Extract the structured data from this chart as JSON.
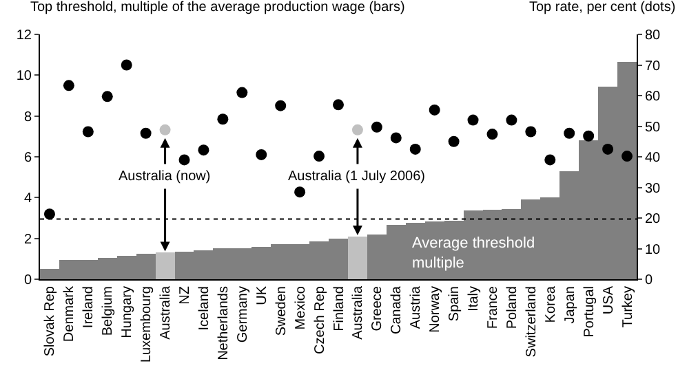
{
  "chart_data": {
    "type": "bar",
    "ylabel": "Top threshold, multiple of the average production wage (bars)",
    "y2label": "Top rate, per cent (dots)",
    "categories": [
      "Slovak Rep",
      "Denmark",
      "Ireland",
      "Belgium",
      "Hungary",
      "Luxembourg",
      "Australia",
      "NZ",
      "Iceland",
      "Netherlands",
      "Germany",
      "UK",
      "Sweden",
      "Mexico",
      "Czech Rep",
      "Finland",
      "Australia",
      "Greece",
      "Canada",
      "Austria",
      "Norway",
      "Spain",
      "Italy",
      "France",
      "Poland",
      "Switzerland",
      "Korea",
      "Japan",
      "Portugal",
      "USA",
      "Turkey"
    ],
    "series": [
      {
        "type": "bar",
        "colors": [
          "#808080",
          "#808080",
          "#808080",
          "#808080",
          "#808080",
          "#808080",
          "#c0c0c0",
          "#808080",
          "#808080",
          "#808080",
          "#808080",
          "#808080",
          "#808080",
          "#808080",
          "#808080",
          "#808080",
          "#c0c0c0",
          "#808080",
          "#808080",
          "#808080",
          "#808080",
          "#808080",
          "#808080",
          "#808080",
          "#808080",
          "#808080",
          "#808080",
          "#808080",
          "#808080",
          "#808080",
          "#808080"
        ],
        "values": [
          0.5,
          0.95,
          0.95,
          1.05,
          1.13,
          1.24,
          1.3,
          1.35,
          1.42,
          1.53,
          1.53,
          1.6,
          1.73,
          1.73,
          1.87,
          1.98,
          2.09,
          2.2,
          2.68,
          2.77,
          2.84,
          2.88,
          3.38,
          3.4,
          3.45,
          3.9,
          4.0,
          5.3,
          6.8,
          9.45,
          10.65
        ]
      },
      {
        "type": "scatter",
        "axis": "y2",
        "marker": "circle",
        "colors": [
          "#000000",
          "#000000",
          "#000000",
          "#000000",
          "#000000",
          "#000000",
          "#c0c0c0",
          "#000000",
          "#000000",
          "#000000",
          "#000000",
          "#000000",
          "#000000",
          "#000000",
          "#000000",
          "#000000",
          "#c0c0c0",
          "#000000",
          "#000000",
          "#000000",
          "#000000",
          "#000000",
          "#000000",
          "#000000",
          "#000000",
          "#000000",
          "#000000",
          "#000000",
          "#000000",
          "#000000",
          "#000000"
        ],
        "values": [
          21.3,
          63.3,
          48.2,
          59.7,
          70,
          47.7,
          48.8,
          39,
          42.2,
          52.3,
          61,
          40.7,
          56.7,
          28.5,
          40.2,
          57,
          48.8,
          49.7,
          46.2,
          42.5,
          55.3,
          45,
          52,
          47.4,
          52,
          48.2,
          39,
          47.7,
          46.8,
          42.5,
          40.2
        ]
      }
    ],
    "ylim": [
      0,
      12
    ],
    "yticks": [
      0,
      2,
      4,
      6,
      8,
      10,
      12
    ],
    "y2lim": [
      0,
      80
    ],
    "y2ticks": [
      0,
      10,
      20,
      30,
      40,
      50,
      60,
      70,
      80
    ],
    "ref_lines": [
      {
        "axis": "y",
        "value": 2.95,
        "label": "Average threshold multiple",
        "line_style": "dotted",
        "color": "#000000"
      }
    ],
    "annotations": [
      {
        "text": "Australia (now)",
        "y": 1.3
      },
      {
        "text": "Australia (1 July 2006)",
        "y": 2.09
      }
    ],
    "grid": false
  }
}
